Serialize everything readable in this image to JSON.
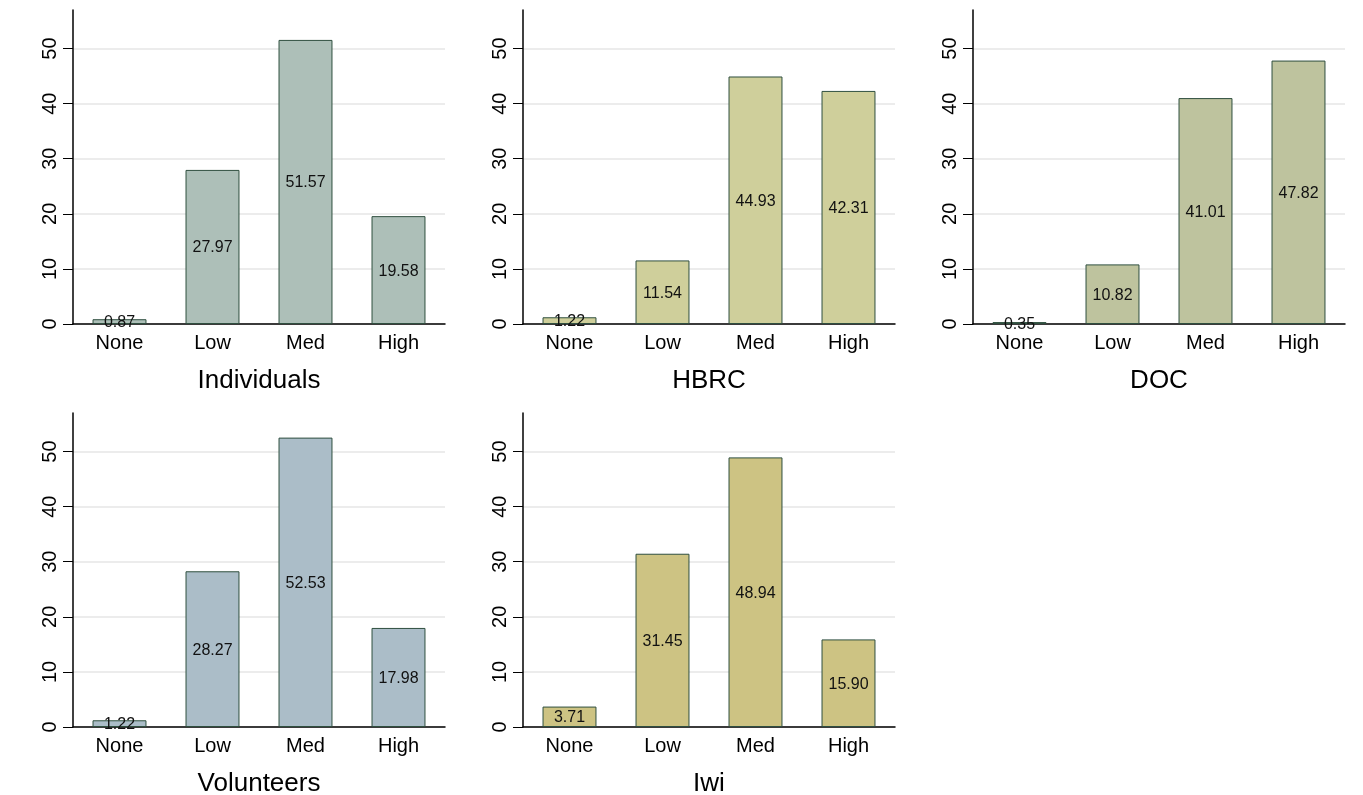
{
  "chart_data": [
    {
      "type": "bar",
      "xlabel": "Individuals",
      "categories": [
        "None",
        "Low",
        "Med",
        "High"
      ],
      "values": [
        0.87,
        27.97,
        51.57,
        19.58
      ],
      "value_labels": [
        "0.87",
        "27.97",
        "51.57",
        "19.58"
      ],
      "color": "#adbfb8",
      "ylim": [
        0,
        57
      ],
      "yticks": [
        0,
        10,
        20,
        30,
        40,
        50
      ],
      "grid": "y"
    },
    {
      "type": "bar",
      "xlabel": "HBRC",
      "categories": [
        "None",
        "Low",
        "Med",
        "High"
      ],
      "values": [
        1.22,
        11.54,
        44.93,
        42.31
      ],
      "value_labels": [
        "1.22",
        "11.54",
        "44.93",
        "42.31"
      ],
      "color": "#cfcf9b",
      "ylim": [
        0,
        57
      ],
      "yticks": [
        0,
        10,
        20,
        30,
        40,
        50
      ],
      "grid": "y"
    },
    {
      "type": "bar",
      "xlabel": "DOC",
      "categories": [
        "None",
        "Low",
        "Med",
        "High"
      ],
      "values": [
        0.35,
        10.82,
        41.01,
        47.82
      ],
      "value_labels": [
        "0.35",
        "10.82",
        "41.01",
        "47.82"
      ],
      "color": "#bec39e",
      "ylim": [
        0,
        57
      ],
      "yticks": [
        0,
        10,
        20,
        30,
        40,
        50
      ],
      "grid": "y"
    },
    {
      "type": "bar",
      "xlabel": "Volunteers",
      "categories": [
        "None",
        "Low",
        "Med",
        "High"
      ],
      "values": [
        1.22,
        28.27,
        52.53,
        17.98
      ],
      "value_labels": [
        "1.22",
        "28.27",
        "52.53",
        "17.98"
      ],
      "color": "#abbdc8",
      "ylim": [
        0,
        57
      ],
      "yticks": [
        0,
        10,
        20,
        30,
        40,
        50
      ],
      "grid": "y"
    },
    {
      "type": "bar",
      "xlabel": "Iwi",
      "categories": [
        "None",
        "Low",
        "Med",
        "High"
      ],
      "values": [
        3.71,
        31.45,
        48.94,
        15.9
      ],
      "value_labels": [
        "3.71",
        "31.45",
        "48.94",
        "15.90"
      ],
      "color": "#cdc383",
      "ylim": [
        0,
        57
      ],
      "yticks": [
        0,
        10,
        20,
        30,
        40,
        50
      ],
      "grid": "y"
    }
  ]
}
